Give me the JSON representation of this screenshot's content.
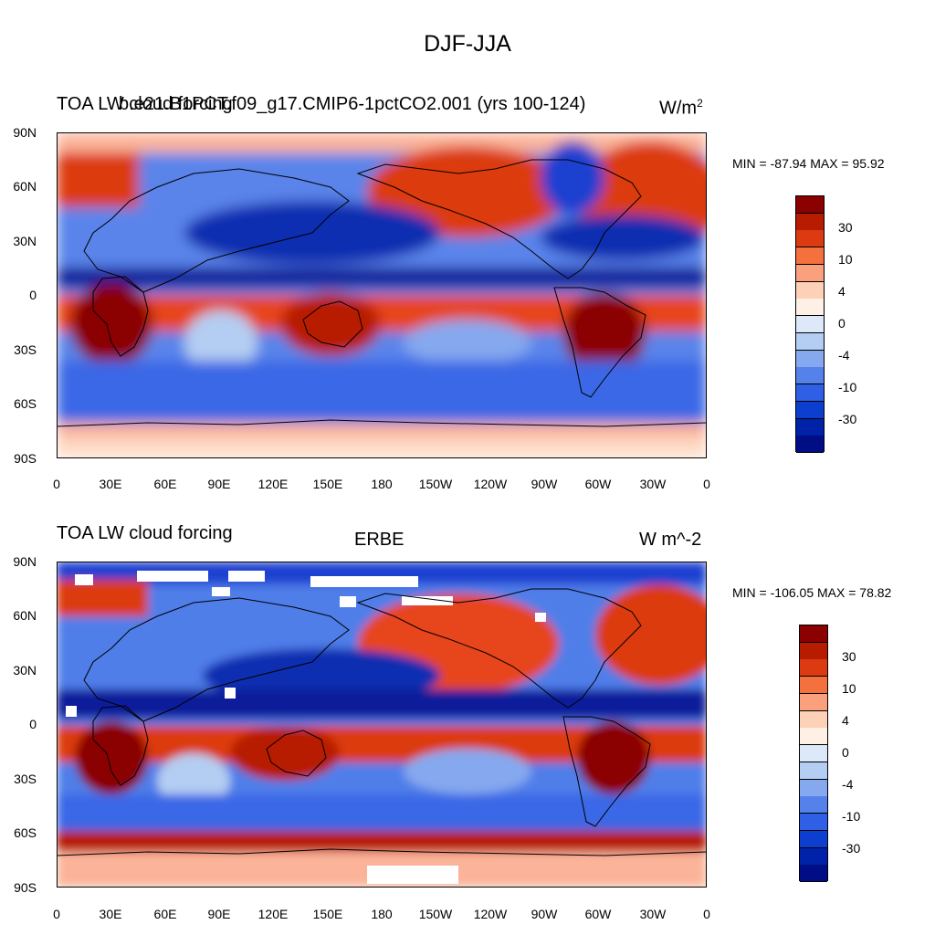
{
  "figure_title": "DJF-JJA",
  "panels": [
    {
      "id": "model",
      "left_title": "TOA LW cloud forcing",
      "center_title": "b.e21.B1PCT.f09_g17.CMIP6-1pctCO2.001 (yrs 100-124)",
      "units": "W/m",
      "units_superscript": "2",
      "stats": "MIN = -87.94 MAX =  95.92",
      "lat_labels": [
        "90N",
        "60N",
        "30N",
        "0",
        "30S",
        "60S",
        "90S"
      ],
      "lon_labels": [
        "0",
        "30E",
        "60E",
        "90E",
        "120E",
        "150E",
        "180",
        "150W",
        "120W",
        "90W",
        "60W",
        "30W",
        "0"
      ]
    },
    {
      "id": "obs",
      "left_title": "TOA LW cloud forcing",
      "center_title": "ERBE",
      "units": "W m^-2",
      "units_superscript": "",
      "stats": "MIN = -106.05 MAX =  78.82",
      "lat_labels": [
        "90N",
        "60N",
        "30N",
        "0",
        "30S",
        "60S",
        "90S"
      ],
      "lon_labels": [
        "0",
        "30E",
        "60E",
        "90E",
        "120E",
        "150E",
        "180",
        "150W",
        "120W",
        "90W",
        "60W",
        "30W",
        "0"
      ]
    }
  ],
  "colorbar": {
    "labels": [
      "30",
      "10",
      "4",
      "0",
      "-4",
      "-10",
      "-30"
    ],
    "colors": [
      "#8b0000",
      "#b81c00",
      "#dc3a10",
      "#f4703c",
      "#fba07c",
      "#fdd0b8",
      "#fff0e6",
      "#dde9f8",
      "#b4cdf2",
      "#85a8ee",
      "#5582ea",
      "#2e5fe4",
      "#0c3fd0",
      "#0022a8",
      "#000d85"
    ]
  }
}
